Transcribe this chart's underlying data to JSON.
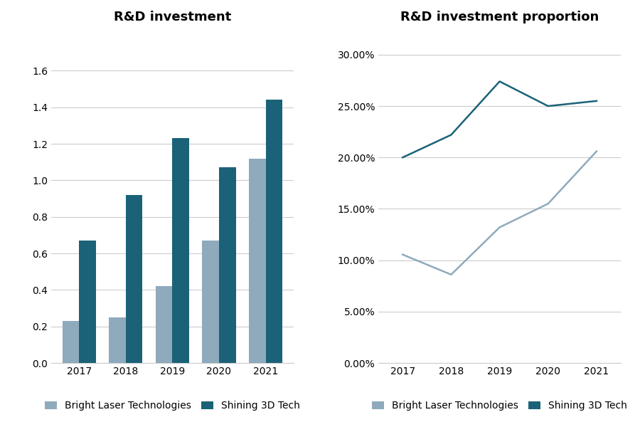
{
  "years": [
    2017,
    2018,
    2019,
    2020,
    2021
  ],
  "bar_title": "R&D investment",
  "line_title": "R&D investment proportion",
  "blt_bar": [
    0.23,
    0.25,
    0.42,
    0.67,
    1.12
  ],
  "s3d_bar": [
    0.67,
    0.92,
    1.23,
    1.07,
    1.44
  ],
  "blt_line": [
    0.1055,
    0.086,
    0.132,
    0.155,
    0.206
  ],
  "s3d_line": [
    0.2,
    0.222,
    0.274,
    0.25,
    0.255
  ],
  "color_blt": "#8FAABC",
  "color_s3d": "#1B6278",
  "bar_ylim": [
    0,
    1.8
  ],
  "bar_yticks": [
    0,
    0.2,
    0.4,
    0.6,
    0.8,
    1.0,
    1.2,
    1.4,
    1.6
  ],
  "line_ylim": [
    0,
    0.32
  ],
  "line_yticks": [
    0.0,
    0.05,
    0.1,
    0.15,
    0.2,
    0.25,
    0.3
  ],
  "legend_blt": "Bright Laser Technologies",
  "legend_s3d": "Shining 3D Tech",
  "background_color": "#ffffff",
  "grid_color": "#cccccc",
  "title_fontsize": 13,
  "tick_fontsize": 10,
  "legend_fontsize": 10
}
